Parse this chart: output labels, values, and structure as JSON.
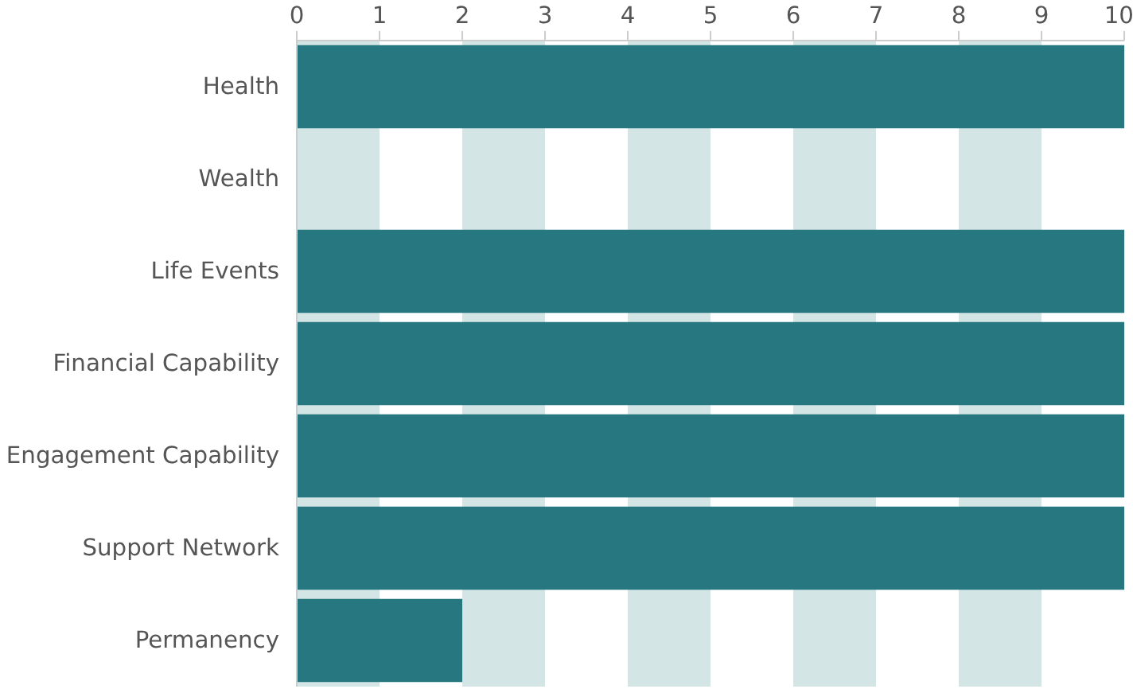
{
  "chart_data": {
    "type": "bar",
    "orientation": "horizontal",
    "categories": [
      "Health",
      "Wealth",
      "Life Events",
      "Financial Capability",
      "Engagement Capability",
      "Support Network",
      "Permanency"
    ],
    "values": [
      10,
      0,
      10,
      10,
      10,
      10,
      2
    ],
    "color": "#277780",
    "xlim": [
      0,
      10
    ],
    "xticks": [
      0,
      1,
      2,
      3,
      4,
      5,
      6,
      7,
      8,
      9,
      10
    ],
    "bands": [
      {
        "axis": "x",
        "from": 0,
        "to": 1,
        "color": "#d3e5e5"
      },
      {
        "axis": "x",
        "from": 2,
        "to": 3,
        "color": "#d3e5e5"
      },
      {
        "axis": "x",
        "from": 4,
        "to": 5,
        "color": "#d3e5e5"
      },
      {
        "axis": "x",
        "from": 6,
        "to": 7,
        "color": "#d3e5e5"
      },
      {
        "axis": "x",
        "from": 8,
        "to": 9,
        "color": "#d3e5e5"
      }
    ],
    "grid": false
  }
}
